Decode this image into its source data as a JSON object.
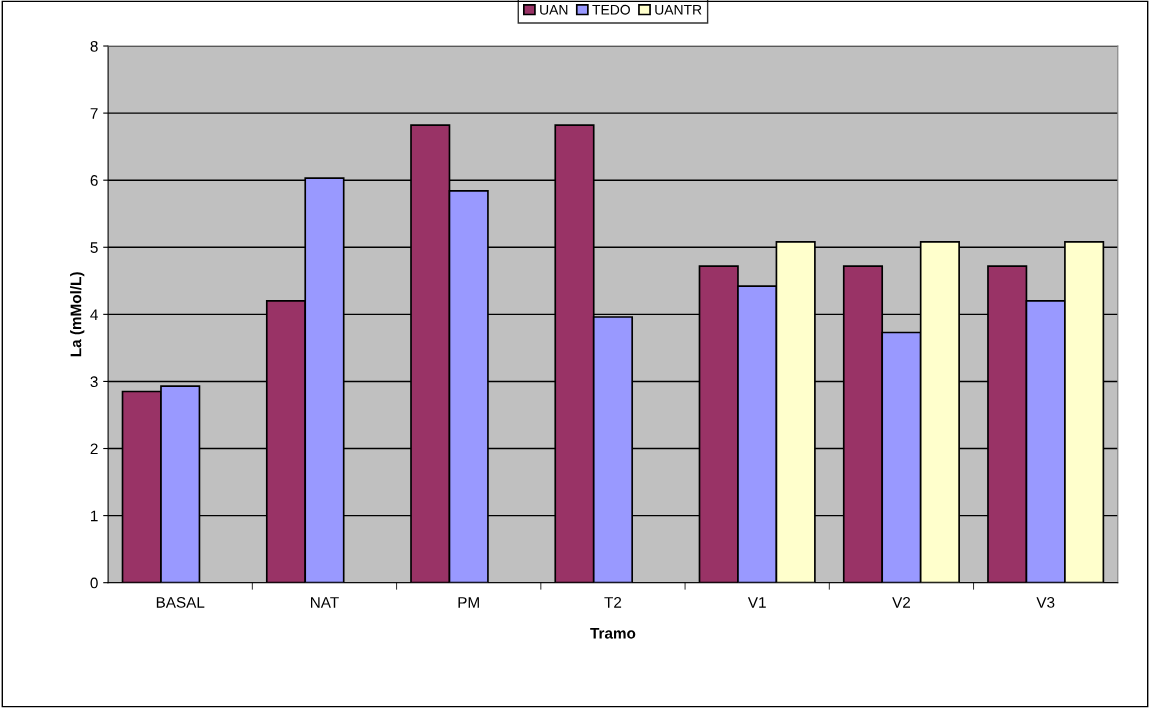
{
  "chart_data": {
    "type": "bar",
    "xlabel": "Tramo",
    "ylabel": "La (mMol/L)",
    "categories": [
      "BASAL",
      "NAT",
      "PM",
      "T2",
      "V1",
      "V2",
      "V3"
    ],
    "series": [
      {
        "name": "UAN",
        "color": "#993366",
        "values": [
          2.85,
          4.2,
          6.82,
          6.82,
          4.72,
          4.72,
          4.72
        ]
      },
      {
        "name": "TEDO",
        "color": "#9999ff",
        "values": [
          2.93,
          6.03,
          5.84,
          3.96,
          4.42,
          3.73,
          4.2
        ]
      },
      {
        "name": "UANTR",
        "color": "#ffffcc",
        "values": [
          null,
          null,
          null,
          null,
          5.08,
          5.08,
          5.08
        ]
      }
    ],
    "ylim": [
      0,
      8
    ],
    "yticks": [
      0,
      1,
      2,
      3,
      4,
      5,
      6,
      7,
      8
    ],
    "grid": "y",
    "legend": "top"
  }
}
